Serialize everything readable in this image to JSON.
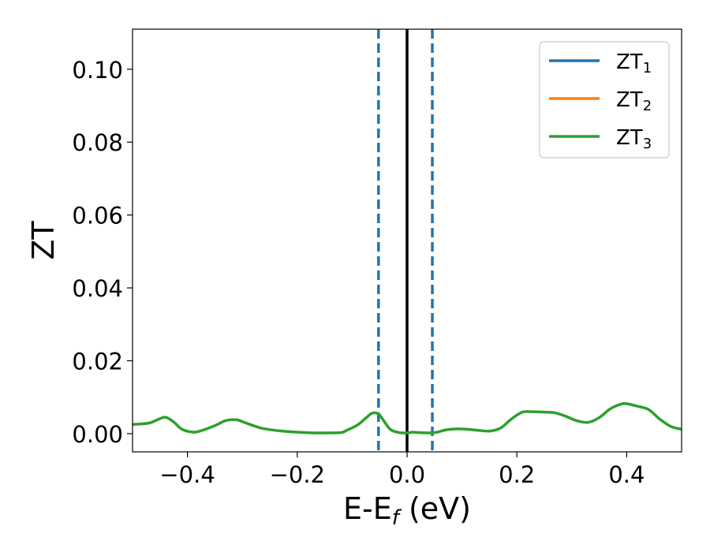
{
  "chart_data": {
    "type": "line",
    "title": "",
    "xlabel": {
      "main": "E-E",
      "sub": "f",
      "unit": " (eV)"
    },
    "ylabel": "ZT",
    "xlim": [
      -0.5,
      0.5
    ],
    "ylim": [
      -0.005,
      0.111
    ],
    "xticks": [
      -0.4,
      -0.2,
      0.0,
      0.2,
      0.4
    ],
    "xtick_labels": [
      "−0.4",
      "−0.2",
      "0.0",
      "0.2",
      "0.4"
    ],
    "yticks": [
      0.0,
      0.02,
      0.04,
      0.06,
      0.08,
      0.1
    ],
    "ytick_labels": [
      "0.00",
      "0.02",
      "0.04",
      "0.06",
      "0.08",
      "0.10"
    ],
    "grid": false,
    "legend_position": "top-right",
    "series": [
      {
        "name": "ZT",
        "sub": "1",
        "color": "#1f77b4",
        "x": [],
        "y": []
      },
      {
        "name": "ZT",
        "sub": "2",
        "color": "#ff7f0e",
        "x": [],
        "y": []
      },
      {
        "name": "ZT",
        "sub": "3",
        "color": "#2ca02c",
        "x": [
          -0.5,
          -0.47,
          -0.455,
          -0.44,
          -0.425,
          -0.41,
          -0.39,
          -0.375,
          -0.35,
          -0.33,
          -0.31,
          -0.295,
          -0.27,
          -0.25,
          -0.22,
          -0.2,
          -0.17,
          -0.15,
          -0.12,
          -0.11,
          -0.09,
          -0.075,
          -0.065,
          -0.057,
          -0.05,
          -0.04,
          -0.03,
          -0.015,
          0.0,
          0.01,
          0.02,
          0.04,
          0.055,
          0.07,
          0.09,
          0.11,
          0.13,
          0.15,
          0.17,
          0.19,
          0.21,
          0.23,
          0.25,
          0.27,
          0.29,
          0.31,
          0.33,
          0.35,
          0.37,
          0.39,
          0.4,
          0.42,
          0.44,
          0.46,
          0.48,
          0.5
        ],
        "y": [
          0.0025,
          0.0029,
          0.0038,
          0.0045,
          0.0032,
          0.0012,
          0.0004,
          0.0008,
          0.0022,
          0.0036,
          0.0038,
          0.003,
          0.0017,
          0.0011,
          0.0006,
          0.0004,
          0.0002,
          0.0002,
          0.0003,
          0.0009,
          0.0024,
          0.0043,
          0.0055,
          0.0057,
          0.0051,
          0.003,
          0.0011,
          0.0003,
          0.0002,
          0.0004,
          0.0003,
          0.0002,
          0.0004,
          0.001,
          0.0013,
          0.0012,
          0.0009,
          0.0007,
          0.0015,
          0.004,
          0.0059,
          0.006,
          0.0059,
          0.0057,
          0.0047,
          0.0035,
          0.0031,
          0.0044,
          0.0068,
          0.0081,
          0.0082,
          0.0075,
          0.0066,
          0.004,
          0.002,
          0.0012
        ]
      }
    ],
    "vlines": [
      {
        "x": 0.0,
        "color": "#000000",
        "style": "solid"
      },
      {
        "x": -0.052,
        "color": "#1f77b4",
        "style": "dashed"
      },
      {
        "x": 0.046,
        "color": "#1f77b4",
        "style": "dashed"
      }
    ]
  }
}
